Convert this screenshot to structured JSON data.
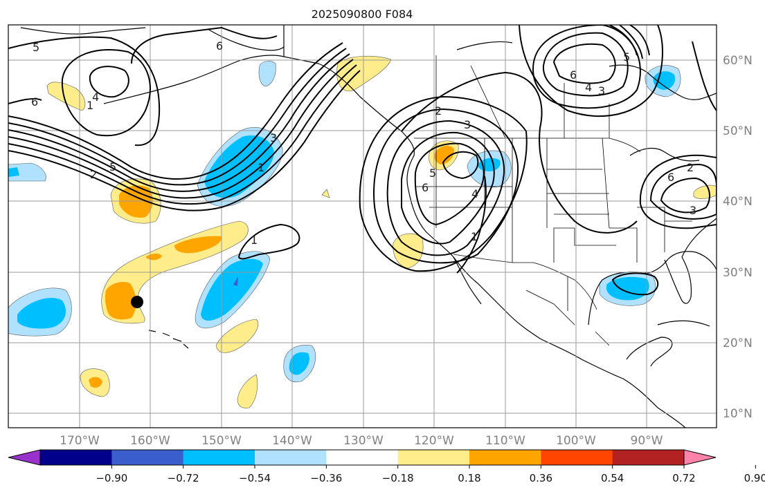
{
  "title": "2025090800 F084",
  "axes": {
    "lon_ticks": [
      "170°W",
      "160°W",
      "150°W",
      "140°W",
      "130°W",
      "120°W",
      "110°W",
      "100°W",
      "90°W"
    ],
    "lat_ticks": [
      "60°N",
      "50°N",
      "40°N",
      "30°N",
      "20°N",
      "10°N"
    ]
  },
  "colorbar": {
    "labels": [
      "−0.90",
      "−0.72",
      "−0.54",
      "−0.36",
      "−0.18",
      "0.18",
      "0.36",
      "0.54",
      "0.72",
      "0.90"
    ],
    "colors": [
      "#9932cc",
      "#00008b",
      "#3a5fcd",
      "#00bfff",
      "#b0e2ff",
      "#ffffff",
      "#ffec8b",
      "#ffa500",
      "#ff4500",
      "#b22222",
      "#ff82ab"
    ]
  },
  "contour_labels": [
    "5",
    "6",
    "4",
    "1",
    "2",
    "5",
    "6",
    "1",
    "3",
    "1",
    "2",
    "3",
    "6",
    "5",
    "4",
    "1",
    "6",
    "4",
    "3",
    "5",
    "6",
    "2",
    "3"
  ],
  "fill_colors": {
    "light_blue": "#b0e2ff",
    "blue": "#00bfff",
    "mid_blue": "#3a5fcd",
    "light_yellow": "#ffec8b",
    "orange": "#ffa500"
  },
  "marker": "storm-position-marker"
}
